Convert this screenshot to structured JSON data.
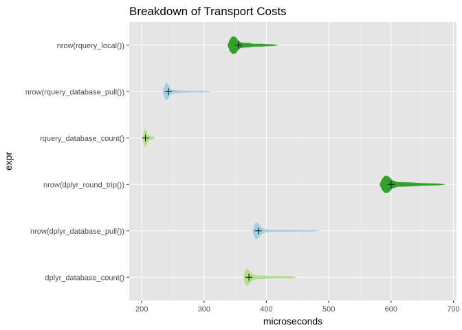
{
  "chart_data": {
    "type": "violin",
    "title": "Breakdown of Transport Costs",
    "xlabel": "microseconds",
    "ylabel": "expr",
    "xlim": [
      180,
      705
    ],
    "xticks": [
      200,
      300,
      400,
      500,
      600,
      700
    ],
    "grid": true,
    "legend": "none",
    "background": "#e5e5e5",
    "categories": [
      {
        "label": "nrow(rquery_local())",
        "color": "#33a02c",
        "min": 344,
        "max": 418,
        "mean": 355,
        "mode": 349,
        "profile": [
          [
            338,
            0
          ],
          [
            342,
            0.7
          ],
          [
            346,
            1
          ],
          [
            350,
            0.95
          ],
          [
            354,
            0.6
          ],
          [
            358,
            0.32
          ],
          [
            364,
            0.25
          ],
          [
            372,
            0.22
          ],
          [
            380,
            0.12
          ],
          [
            390,
            0.14
          ],
          [
            402,
            0.09
          ],
          [
            410,
            0.07
          ],
          [
            418,
            0
          ]
        ]
      },
      {
        "label": "nrow(rquery_database_pull())",
        "color": "#a6cee3",
        "min": 233,
        "max": 311,
        "mean": 243,
        "mode": 240,
        "profile": [
          [
            234,
            0
          ],
          [
            237,
            0.65
          ],
          [
            240,
            1
          ],
          [
            243,
            0.7
          ],
          [
            246,
            0.35
          ],
          [
            250,
            0.18
          ],
          [
            256,
            0.14
          ],
          [
            262,
            0.11
          ],
          [
            270,
            0.08
          ],
          [
            278,
            0.06
          ],
          [
            290,
            0.05
          ],
          [
            300,
            0.05
          ],
          [
            311,
            0
          ]
        ]
      },
      {
        "label": "rquery_database_count()",
        "color": "#b2df8a",
        "min": 203,
        "max": 221,
        "mean": 206,
        "mode": 205,
        "profile": [
          [
            202,
            0
          ],
          [
            203.5,
            0.6
          ],
          [
            205,
            1
          ],
          [
            207,
            0.85
          ],
          [
            209,
            0.45
          ],
          [
            212,
            0.22
          ],
          [
            216,
            0.16
          ],
          [
            219,
            0.12
          ],
          [
            221,
            0
          ]
        ]
      },
      {
        "label": "nrow(dplyr_round_trip())",
        "color": "#33a02c",
        "min": 583,
        "max": 686,
        "mean": 600,
        "mode": 591,
        "profile": [
          [
            582,
            0
          ],
          [
            586,
            0.65
          ],
          [
            591,
            1
          ],
          [
            596,
            0.9
          ],
          [
            602,
            0.45
          ],
          [
            610,
            0.25
          ],
          [
            622,
            0.22
          ],
          [
            632,
            0.2
          ],
          [
            645,
            0.14
          ],
          [
            660,
            0.1
          ],
          [
            675,
            0.08
          ],
          [
            686,
            0
          ]
        ]
      },
      {
        "label": "nrow(dplyr_database_pull())",
        "color": "#a6cee3",
        "min": 378,
        "max": 485,
        "mean": 387,
        "mode": 384,
        "profile": [
          [
            378,
            0
          ],
          [
            381,
            0.65
          ],
          [
            384,
            1
          ],
          [
            388,
            0.7
          ],
          [
            392,
            0.35
          ],
          [
            398,
            0.16
          ],
          [
            408,
            0.1
          ],
          [
            420,
            0.08
          ],
          [
            435,
            0.07
          ],
          [
            450,
            0.06
          ],
          [
            470,
            0.05
          ],
          [
            485,
            0
          ]
        ]
      },
      {
        "label": "dplyr_database_count()",
        "color": "#b2df8a",
        "min": 364,
        "max": 447,
        "mean": 372,
        "mode": 368,
        "profile": [
          [
            364,
            0
          ],
          [
            366,
            0.7
          ],
          [
            369,
            1
          ],
          [
            373,
            0.7
          ],
          [
            377,
            0.38
          ],
          [
            383,
            0.2
          ],
          [
            392,
            0.18
          ],
          [
            402,
            0.12
          ],
          [
            415,
            0.1
          ],
          [
            430,
            0.08
          ],
          [
            440,
            0.07
          ],
          [
            447,
            0
          ]
        ]
      }
    ]
  }
}
